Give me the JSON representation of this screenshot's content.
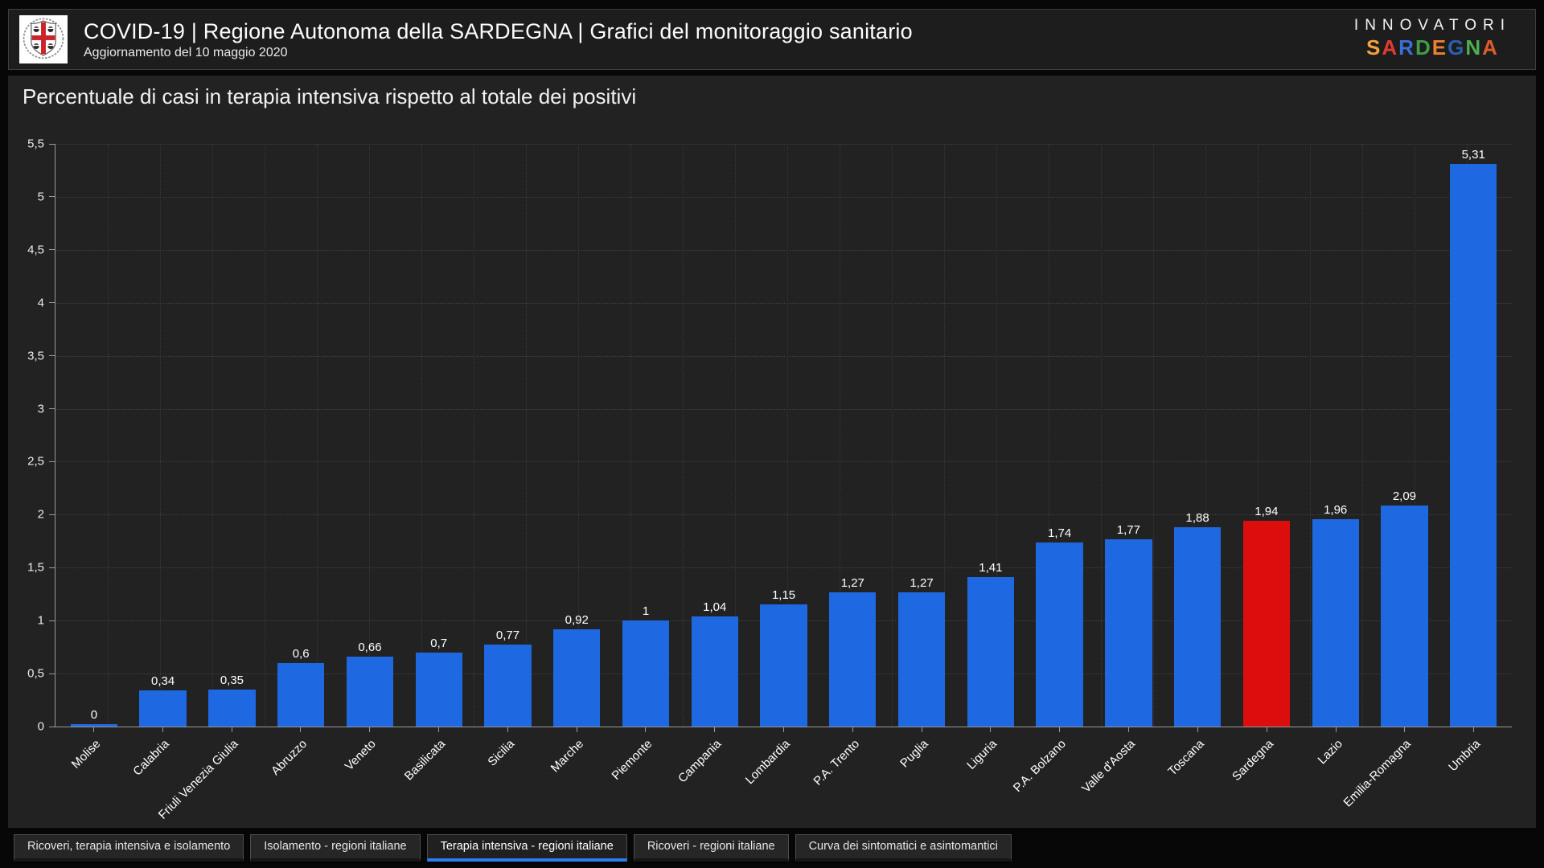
{
  "header": {
    "title": "COVID-19 | Regione Autonoma della SARDEGNA | Grafici del monitoraggio sanitario",
    "subtitle": "Aggiornamento del 10 maggio 2020",
    "logo": "regione-sardegna-crest",
    "brand": {
      "line1": "INNOVATORI",
      "line2_letters": [
        {
          "ch": "S",
          "color": "#f2a33c"
        },
        {
          "ch": "A",
          "color": "#e03c31"
        },
        {
          "ch": "R",
          "color": "#3a6fd8"
        },
        {
          "ch": "D",
          "color": "#3f9e49"
        },
        {
          "ch": "E",
          "color": "#f07f2e"
        },
        {
          "ch": "G",
          "color": "#2b5fb0"
        },
        {
          "ch": "N",
          "color": "#4caf50"
        },
        {
          "ch": "A",
          "color": "#e05a2b"
        }
      ]
    }
  },
  "chart_data": {
    "type": "bar",
    "title": "Percentuale di casi in terapia intensiva rispetto al totale dei positivi",
    "categories": [
      "Molise",
      "Calabria",
      "Friuli Venezia Giulia",
      "Abruzzo",
      "Veneto",
      "Basilicata",
      "Sicilia",
      "Marche",
      "Piemonte",
      "Campania",
      "Lombardia",
      "P.A. Trento",
      "Puglia",
      "Liguria",
      "P.A. Bolzano",
      "Valle d'Aosta",
      "Toscana",
      "Sardegna",
      "Lazio",
      "Emilia-Romagna",
      "Umbria"
    ],
    "values": [
      0,
      0.34,
      0.35,
      0.6,
      0.66,
      0.7,
      0.77,
      0.92,
      1,
      1.04,
      1.15,
      1.27,
      1.27,
      1.41,
      1.74,
      1.77,
      1.88,
      1.94,
      1.96,
      2.09,
      5.31
    ],
    "value_labels": [
      "0",
      "0,34",
      "0,35",
      "0,6",
      "0,66",
      "0,7",
      "0,77",
      "0,92",
      "1",
      "1,04",
      "1,15",
      "1,27",
      "1,27",
      "1,41",
      "1,74",
      "1,77",
      "1,88",
      "1,94",
      "1,96",
      "2,09",
      "5,31"
    ],
    "highlight_category": "Sardegna",
    "bar_color": "#1e69e1",
    "highlight_color": "#dc0d0d",
    "xlabel": "",
    "ylabel": "",
    "ylim": [
      0,
      5.5
    ],
    "ytick_values": [
      0,
      0.5,
      1,
      1.5,
      2,
      2.5,
      3,
      3.5,
      4,
      4.5,
      5,
      5.5
    ],
    "ytick_labels": [
      "0",
      "0,5",
      "1",
      "1,5",
      "2",
      "2,5",
      "3",
      "3,5",
      "4",
      "4,5",
      "5",
      "5,5"
    ],
    "grid": true,
    "legend": false
  },
  "tabs": [
    {
      "label": "Ricoveri, terapia intensiva e isolamento",
      "active": false
    },
    {
      "label": "Isolamento - regioni italiane",
      "active": false
    },
    {
      "label": "Terapia intensiva - regioni italiane",
      "active": true
    },
    {
      "label": "Ricoveri - regioni italiane",
      "active": false
    },
    {
      "label": "Curva dei sintomatici e asintomantici",
      "active": false
    }
  ]
}
